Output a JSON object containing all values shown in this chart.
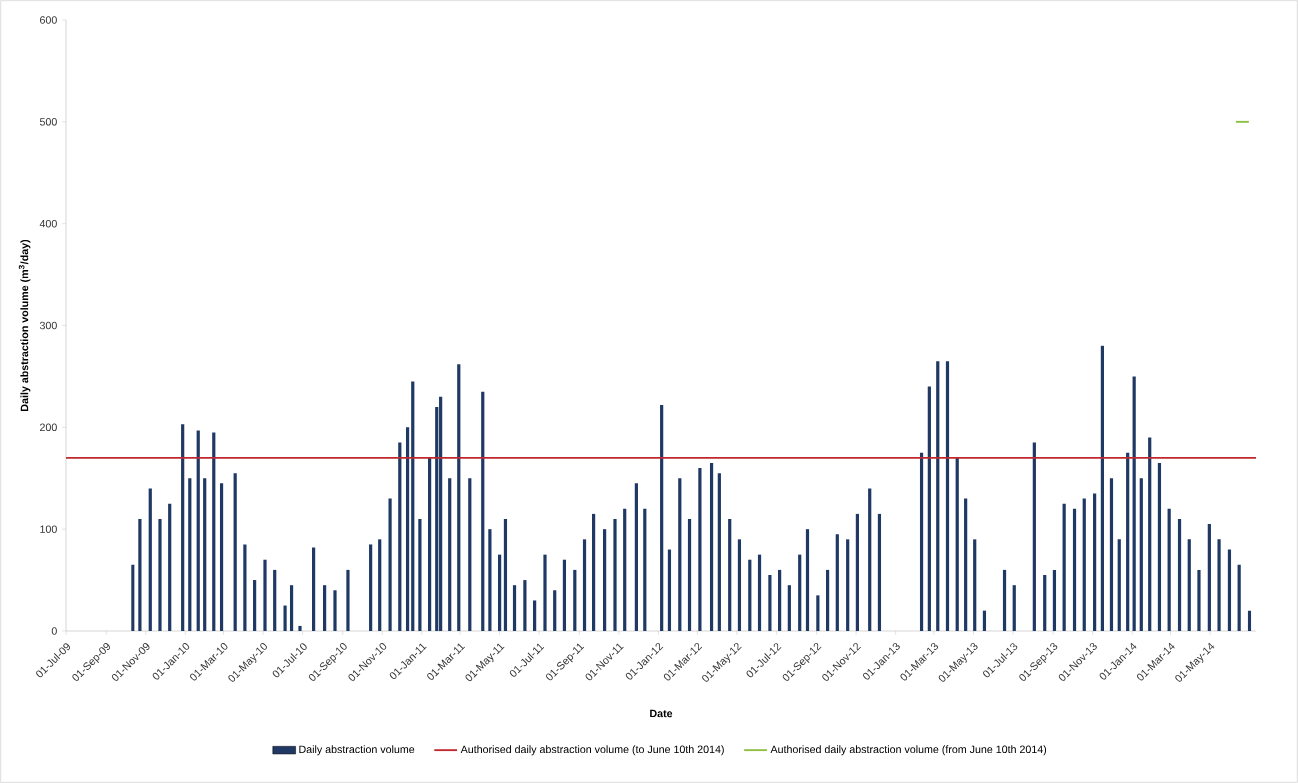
{
  "chart_data": {
    "type": "bar",
    "xlabel": "Date",
    "ylabel": "Daily abstraction volume (m$^{3}$/day)",
    "xlim": [
      "2009-07-01",
      "2014-07-11"
    ],
    "ylim": [
      0,
      600
    ],
    "yticks": [
      0,
      100,
      200,
      300,
      400,
      500,
      600
    ],
    "xticks": [
      {
        "value": "2009-07-01",
        "label": "01-Jul-09"
      },
      {
        "value": "2009-09-01",
        "label": "01-Sep-09"
      },
      {
        "value": "2009-11-01",
        "label": "01-Nov-09"
      },
      {
        "value": "2010-01-01",
        "label": "01-Jan-10"
      },
      {
        "value": "2010-03-01",
        "label": "01-Mar-10"
      },
      {
        "value": "2010-05-01",
        "label": "01-May-10"
      },
      {
        "value": "2010-07-01",
        "label": "01-Jul-10"
      },
      {
        "value": "2010-09-01",
        "label": "01-Sep-10"
      },
      {
        "value": "2010-11-01",
        "label": "01-Nov-10"
      },
      {
        "value": "2011-01-01",
        "label": "01-Jan-11"
      },
      {
        "value": "2011-03-01",
        "label": "01-Mar-11"
      },
      {
        "value": "2011-05-01",
        "label": "01-May-11"
      },
      {
        "value": "2011-07-01",
        "label": "01-Jul-11"
      },
      {
        "value": "2011-09-01",
        "label": "01-Sep-11"
      },
      {
        "value": "2011-11-01",
        "label": "01-Nov-11"
      },
      {
        "value": "2012-01-01",
        "label": "01-Jan-12"
      },
      {
        "value": "2012-03-01",
        "label": "01-Mar-12"
      },
      {
        "value": "2012-05-01",
        "label": "01-May-12"
      },
      {
        "value": "2012-07-01",
        "label": "01-Jul-12"
      },
      {
        "value": "2012-09-01",
        "label": "01-Sep-12"
      },
      {
        "value": "2012-11-01",
        "label": "01-Nov-12"
      },
      {
        "value": "2013-01-01",
        "label": "01-Jan-13"
      },
      {
        "value": "2013-03-01",
        "label": "01-Mar-13"
      },
      {
        "value": "2013-05-01",
        "label": "01-May-13"
      },
      {
        "value": "2013-07-01",
        "label": "01-Jul-13"
      },
      {
        "value": "2013-09-01",
        "label": "01-Sep-13"
      },
      {
        "value": "2013-11-01",
        "label": "01-Nov-13"
      },
      {
        "value": "2014-01-01",
        "label": "01-Jan-14"
      },
      {
        "value": "2014-03-01",
        "label": "01-Mar-14"
      },
      {
        "value": "2014-05-01",
        "label": "01-May-14"
      }
    ],
    "legend": "bottom",
    "series": [
      {
        "name": "Daily abstraction volume",
        "color": "#1f3864",
        "x": [
          "2009-10-12",
          "2009-10-23",
          "2009-11-08",
          "2009-11-23",
          "2009-12-08",
          "2009-12-28",
          "2010-01-08",
          "2010-01-21",
          "2010-01-31",
          "2010-02-14",
          "2010-02-26",
          "2010-03-19",
          "2010-04-03",
          "2010-04-18",
          "2010-05-04",
          "2010-05-19",
          "2010-06-04",
          "2010-06-14",
          "2010-06-27",
          "2010-07-18",
          "2010-08-04",
          "2010-08-20",
          "2010-09-09",
          "2010-10-14",
          "2010-10-28",
          "2010-11-13",
          "2010-11-28",
          "2010-12-10",
          "2010-12-18",
          "2010-12-29",
          "2011-01-13",
          "2011-01-24",
          "2011-01-30",
          "2011-02-13",
          "2011-02-27",
          "2011-03-16",
          "2011-04-05",
          "2011-04-16",
          "2011-05-01",
          "2011-05-10",
          "2011-05-24",
          "2011-06-09",
          "2011-06-24",
          "2011-07-10",
          "2011-07-25",
          "2011-08-09",
          "2011-08-25",
          "2011-09-09",
          "2011-09-23",
          "2011-10-10",
          "2011-10-26",
          "2011-11-10",
          "2011-11-28",
          "2011-12-11",
          "2012-01-06",
          "2012-01-18",
          "2012-02-03",
          "2012-02-18",
          "2012-03-05",
          "2012-03-23",
          "2012-04-04",
          "2012-04-20",
          "2012-05-05",
          "2012-05-21",
          "2012-06-05",
          "2012-06-21",
          "2012-07-06",
          "2012-07-21",
          "2012-08-06",
          "2012-08-18",
          "2012-09-03",
          "2012-09-18",
          "2012-10-03",
          "2012-10-19",
          "2012-11-03",
          "2012-11-22",
          "2012-12-07",
          "2013-02-10",
          "2013-02-22",
          "2013-03-07",
          "2013-03-22",
          "2013-04-06",
          "2013-04-19",
          "2013-05-03",
          "2013-05-18",
          "2013-06-18",
          "2013-07-03",
          "2013-08-03",
          "2013-08-19",
          "2013-09-03",
          "2013-09-18",
          "2013-10-04",
          "2013-10-19",
          "2013-11-04",
          "2013-11-16",
          "2013-11-30",
          "2013-12-12",
          "2013-12-25",
          "2014-01-04",
          "2014-01-15",
          "2014-01-28",
          "2014-02-12",
          "2014-02-27",
          "2014-03-15",
          "2014-03-30",
          "2014-04-14",
          "2014-04-30",
          "2014-05-15",
          "2014-05-31",
          "2014-06-15",
          "2014-07-01"
        ],
        "values": [
          65,
          110,
          140,
          110,
          125,
          203,
          150,
          197,
          150,
          195,
          145,
          155,
          85,
          50,
          70,
          60,
          25,
          45,
          5,
          82,
          45,
          40,
          60,
          85,
          90,
          130,
          185,
          200,
          245,
          110,
          170,
          220,
          230,
          150,
          262,
          150,
          235,
          100,
          75,
          110,
          45,
          50,
          30,
          75,
          40,
          70,
          60,
          90,
          115,
          100,
          110,
          120,
          145,
          120,
          222,
          80,
          150,
          110,
          160,
          165,
          155,
          110,
          90,
          70,
          75,
          55,
          60,
          45,
          75,
          100,
          35,
          60,
          95,
          90,
          115,
          140,
          115,
          175,
          240,
          265,
          265,
          170,
          130,
          90,
          20,
          60,
          45,
          185,
          55,
          60,
          125,
          120,
          130,
          135,
          280,
          150,
          90,
          175,
          250,
          150,
          190,
          165,
          120,
          110,
          90,
          60,
          105,
          90,
          80,
          65,
          20
        ]
      },
      {
        "name": "Authorised daily abstraction volume (to June 10th 2014)",
        "type": "line",
        "color": "#c0282d",
        "x": [
          "2009-07-01",
          "2014-07-11"
        ],
        "values": [
          170,
          170
        ]
      },
      {
        "name": "Authorised daily abstraction volume (from June 10th 2014)",
        "type": "line",
        "color": "#8cbf3f",
        "x": [
          "2014-06-10",
          "2014-06-30"
        ],
        "values": [
          500,
          500
        ]
      }
    ]
  }
}
